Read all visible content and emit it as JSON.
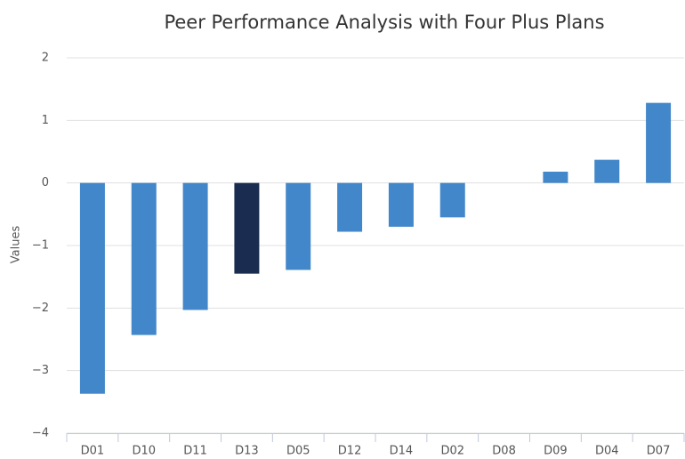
{
  "chart_data": {
    "type": "bar",
    "title": "Peer Performance Analysis with Four Plus Plans",
    "y_label": "Values",
    "categories": [
      "D01",
      "D10",
      "D11",
      "D13",
      "D05",
      "D12",
      "D14",
      "D02",
      "D08",
      "D09",
      "D04",
      "D07"
    ],
    "values": [
      -3.37,
      -2.43,
      -2.03,
      -1.45,
      -1.39,
      -0.78,
      -0.7,
      -0.55,
      0,
      0.18,
      0.37,
      1.28
    ],
    "colors": [
      "#4287c9",
      "#4287c9",
      "#4287c9",
      "#1a2d50",
      "#4287c9",
      "#4287c9",
      "#4287c9",
      "#4287c9",
      "#4287c9",
      "#4287c9",
      "#4287c9",
      "#4287c9"
    ],
    "ylim": [
      -4,
      2
    ],
    "yticks": [
      {
        "value": -4,
        "label": "−4"
      },
      {
        "value": -3,
        "label": "−3"
      },
      {
        "value": -2,
        "label": "−2"
      },
      {
        "value": -1,
        "label": "−1"
      },
      0,
      1,
      2
    ],
    "grid": true
  }
}
